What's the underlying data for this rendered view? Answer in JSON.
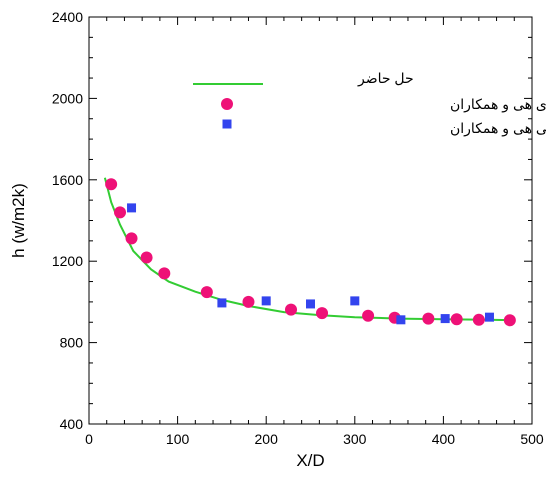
{
  "chart_data": {
    "type": "scatter",
    "xlabel": "X/D",
    "ylabel": "h (w/m2k)",
    "xlim": [
      0,
      500
    ],
    "ylim": [
      400,
      2400
    ],
    "x_ticks": [
      0,
      100,
      200,
      300,
      400,
      500
    ],
    "y_ticks": [
      400,
      800,
      1200,
      1600,
      2000,
      2400
    ],
    "grid": false,
    "legend_position": "top-center",
    "series": [
      {
        "name": "حل حاضر",
        "kind": "line",
        "color": "#33cc33",
        "x": [
          18,
          25,
          35,
          50,
          70,
          90,
          120,
          150,
          180,
          220,
          260,
          300,
          350,
          400,
          450,
          475
        ],
        "y": [
          1610,
          1490,
          1380,
          1250,
          1160,
          1100,
          1050,
          1010,
          980,
          950,
          935,
          925,
          918,
          915,
          912,
          910
        ]
      },
      {
        "name": "نتایج عددی هی و همکاران",
        "kind": "circle",
        "color": "#ee1177",
        "x": [
          25,
          35,
          48,
          65,
          85,
          133,
          180,
          228,
          263,
          315,
          345,
          383,
          415,
          440,
          475
        ],
        "y": [
          1578,
          1440,
          1312,
          1218,
          1140,
          1048,
          1000,
          962,
          945,
          932,
          922,
          918,
          915,
          912,
          910
        ]
      },
      {
        "name": "نتایج تجربی هی و همکاران",
        "kind": "square",
        "color": "#3344ee",
        "x": [
          48,
          150,
          200,
          250,
          300,
          352,
          402,
          452
        ],
        "y": [
          1462,
          995,
          1005,
          990,
          1005,
          912,
          918,
          925
        ]
      }
    ]
  }
}
